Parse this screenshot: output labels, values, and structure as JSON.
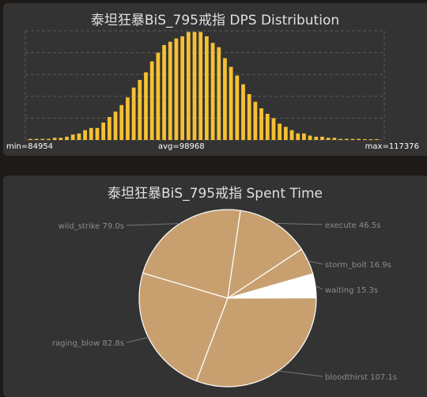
{
  "dist_panel": {
    "title": "泰坦狂暴BiS_795戒指 DPS Distribution",
    "min_label": "min=84954",
    "avg_label": "avg=98968",
    "max_label": "max=117376"
  },
  "pie_panel": {
    "title": "泰坦狂暴BiS_795戒指 Spent Time"
  },
  "colors": {
    "histogram_bar": "#f5c033",
    "pie_slice": "#c8a070",
    "pie_waiting": "#ffffff",
    "panel_bg": "#333333",
    "page_bg": "#1d1a17"
  },
  "chart_data": [
    {
      "type": "bar",
      "title": "泰坦狂暴BiS_795戒指 DPS Distribution",
      "grid": true,
      "x_range": [
        84954,
        117376
      ],
      "x_mean": 98968,
      "ylim": [
        0,
        1
      ],
      "values": [
        0.01,
        0.01,
        0.01,
        0.01,
        0.02,
        0.02,
        0.03,
        0.05,
        0.06,
        0.09,
        0.11,
        0.11,
        0.16,
        0.21,
        0.26,
        0.32,
        0.39,
        0.48,
        0.55,
        0.62,
        0.72,
        0.8,
        0.87,
        0.9,
        0.93,
        0.95,
        0.99,
        0.99,
        0.99,
        0.95,
        0.89,
        0.85,
        0.75,
        0.67,
        0.59,
        0.51,
        0.42,
        0.35,
        0.29,
        0.24,
        0.2,
        0.15,
        0.12,
        0.09,
        0.06,
        0.06,
        0.04,
        0.03,
        0.03,
        0.02,
        0.02,
        0.01,
        0.01,
        0.01,
        0.01,
        0.005,
        0.005,
        0.005
      ]
    },
    {
      "type": "pie",
      "title": "泰坦狂暴BiS_795戒指 Spent Time",
      "unit": "s",
      "slices": [
        {
          "label": "waiting 15.3s",
          "value": 15.3
        },
        {
          "label": "bloodthirst 107.1s",
          "value": 107.1
        },
        {
          "label": "raging_blow 82.8s",
          "value": 82.8
        },
        {
          "label": "wild_strike 79.0s",
          "value": 79.0
        },
        {
          "label": "execute 46.5s",
          "value": 46.5
        },
        {
          "label": "storm_bolt 16.9s",
          "value": 16.9
        }
      ]
    }
  ]
}
